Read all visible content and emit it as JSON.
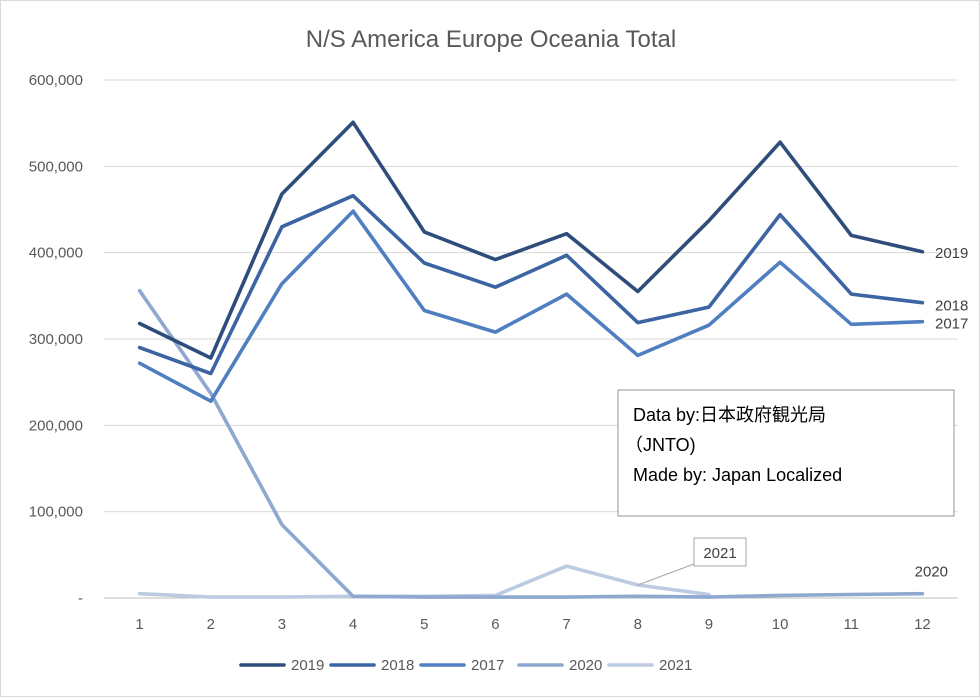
{
  "chart_data": {
    "type": "line",
    "title": "N/S America Europe Oceania Total",
    "categories": [
      "1",
      "2",
      "3",
      "4",
      "5",
      "6",
      "7",
      "8",
      "9",
      "10",
      "11",
      "12"
    ],
    "y_ticks": [
      "-",
      "100,000",
      "200,000",
      "300,000",
      "400,000",
      "500,000",
      "600,000"
    ],
    "ylim": [
      0,
      600000
    ],
    "grid": true,
    "legend_position": "bottom",
    "series": [
      {
        "name": "2019",
        "color": "#2e4d7b",
        "end_label": "2019",
        "values": [
          318000,
          278000,
          468000,
          551000,
          424000,
          392000,
          422000,
          355000,
          437000,
          528000,
          420000,
          401000
        ]
      },
      {
        "name": "2018",
        "color": "#3c64a2",
        "end_label": "2018",
        "values": [
          290000,
          260000,
          430000,
          466000,
          388000,
          360000,
          397000,
          319000,
          337000,
          444000,
          352000,
          342000
        ]
      },
      {
        "name": "2017",
        "color": "#4f7fc0",
        "end_label": "2017",
        "values": [
          272000,
          228000,
          364000,
          448000,
          333000,
          308000,
          352000,
          281000,
          316000,
          389000,
          317000,
          320000
        ]
      },
      {
        "name": "2020",
        "color": "#8fa8cf",
        "end_label": "2020",
        "values": [
          356000,
          237000,
          85000,
          2000,
          1000,
          1000,
          1000,
          2000,
          1000,
          3000,
          4000,
          5000
        ]
      },
      {
        "name": "2021",
        "color": "#bccbe2",
        "callout": "2021",
        "values": [
          5000,
          1000,
          1000,
          2000,
          2000,
          3000,
          37000,
          15000,
          4000,
          null,
          null,
          null
        ]
      }
    ],
    "annotations": {
      "source_line1": "Data by:日本政府観光局",
      "source_line2": "（JNTO)",
      "source_line3": "Made by: Japan Localized"
    }
  }
}
